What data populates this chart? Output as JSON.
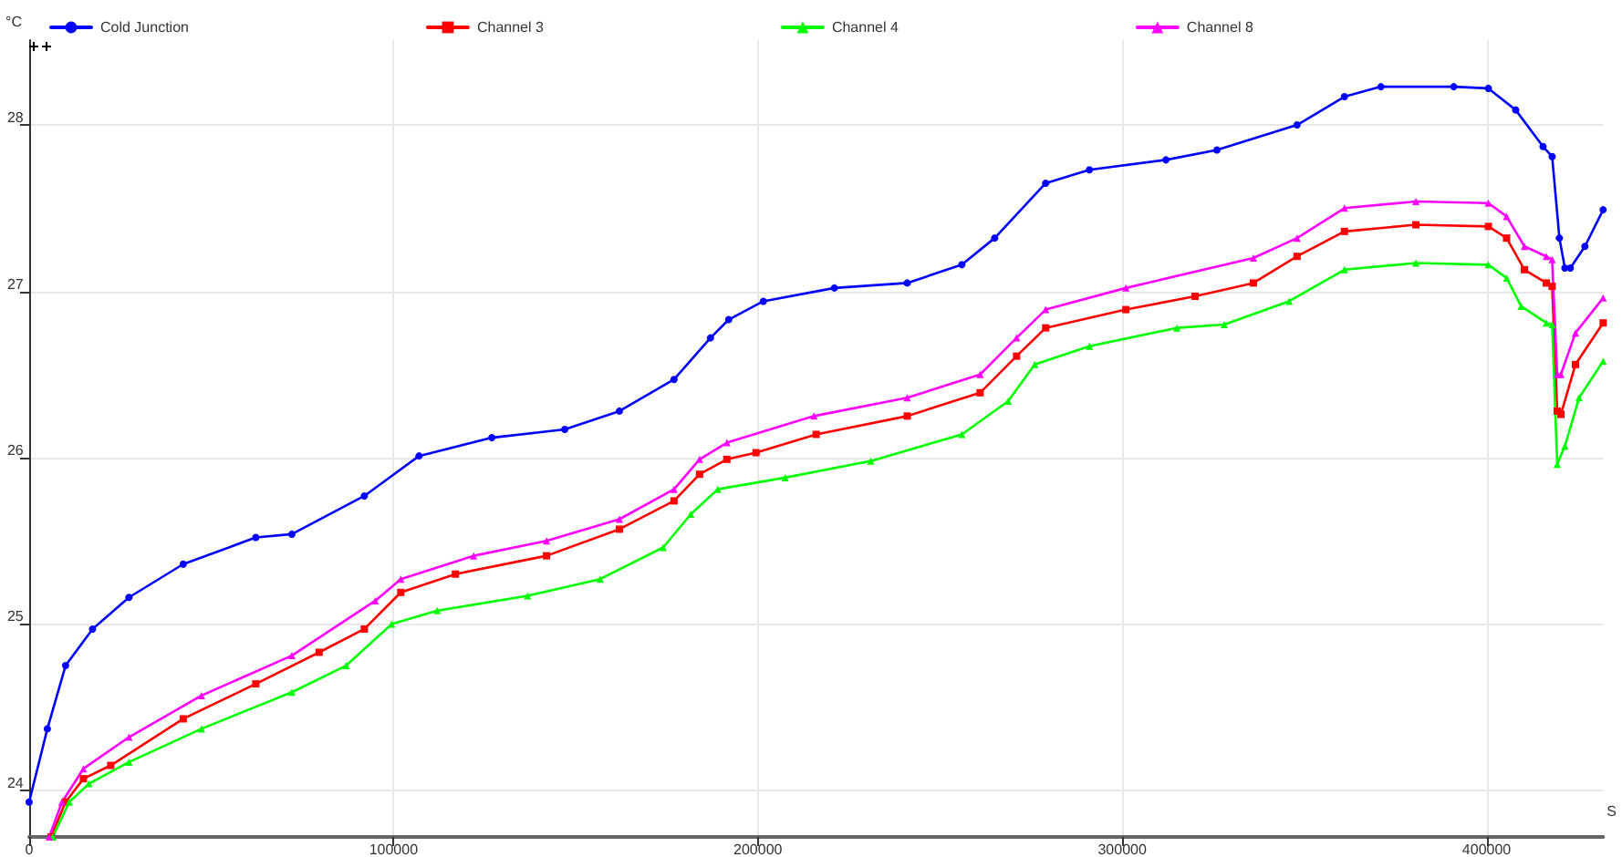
{
  "chart_data": {
    "type": "line",
    "xlabel": "S",
    "ylabel": "°C",
    "xlim": [
      0,
      432000
    ],
    "ylim": [
      23.72,
      28.51
    ],
    "xticks": [
      0,
      100000,
      200000,
      300000,
      400000
    ],
    "yticks": [
      24,
      25,
      26,
      27,
      28
    ],
    "grid": true,
    "legend": "top",
    "line_style": "solid",
    "series": [
      {
        "name": "Cold Junction",
        "color": "#0000ff",
        "marker": "circle",
        "x": [
          0,
          5000,
          10000,
          17400,
          27400,
          42300,
          62200,
          72100,
          92000,
          107000,
          127000,
          147000,
          162000,
          177000,
          187000,
          192000,
          201500,
          221000,
          241000,
          256000,
          265000,
          279000,
          291000,
          312000,
          326000,
          348000,
          361000,
          371000,
          391000,
          400500,
          408000,
          415500,
          418000,
          420000,
          421500,
          423000,
          427000,
          432000
        ],
        "values": [
          23.93,
          24.37,
          24.75,
          24.97,
          25.16,
          25.36,
          25.52,
          25.54,
          25.77,
          26.01,
          26.12,
          26.17,
          26.28,
          26.47,
          26.72,
          26.83,
          26.94,
          27.02,
          27.05,
          27.16,
          27.32,
          27.65,
          27.73,
          27.79,
          27.85,
          28.0,
          28.17,
          28.23,
          28.23,
          28.22,
          28.09,
          27.87,
          27.81,
          27.32,
          27.14,
          27.14,
          27.27,
          27.49
        ]
      },
      {
        "name": "Channel 3",
        "color": "#ff0000",
        "marker": "square",
        "x": [
          6000,
          10000,
          14900,
          22400,
          42300,
          62200,
          79600,
          92000,
          102000,
          117000,
          142000,
          162000,
          177000,
          184000,
          191500,
          199500,
          216000,
          241000,
          261000,
          271000,
          279000,
          301000,
          320000,
          336000,
          348000,
          361000,
          380600,
          400500,
          405500,
          410400,
          416400,
          418000,
          419400,
          420400,
          424400,
          432000
        ],
        "values": [
          23.72,
          23.93,
          24.07,
          24.15,
          24.43,
          24.64,
          24.83,
          24.97,
          25.19,
          25.3,
          25.41,
          25.57,
          25.74,
          25.9,
          25.99,
          26.03,
          26.14,
          26.25,
          26.39,
          26.61,
          26.78,
          26.89,
          26.97,
          27.05,
          27.21,
          27.36,
          27.4,
          27.39,
          27.32,
          27.13,
          27.05,
          27.03,
          26.28,
          26.26,
          26.56,
          26.81
        ]
      },
      {
        "name": "Channel 4",
        "color": "#00ff00",
        "marker": "triangle",
        "x": [
          6500,
          11000,
          16400,
          27400,
          47300,
          72100,
          87000,
          99500,
          112000,
          136800,
          156700,
          174000,
          181600,
          189000,
          207500,
          231000,
          256000,
          268700,
          276000,
          291000,
          315000,
          328000,
          345800,
          361000,
          380600,
          400500,
          405500,
          409500,
          416400,
          418000,
          419400,
          421500,
          425400,
          432000
        ],
        "values": [
          23.72,
          23.93,
          24.04,
          24.17,
          24.37,
          24.59,
          24.75,
          25.0,
          25.08,
          25.17,
          25.27,
          25.46,
          25.66,
          25.81,
          25.88,
          25.98,
          26.14,
          26.34,
          26.56,
          26.67,
          26.78,
          26.8,
          26.94,
          27.13,
          27.17,
          27.16,
          27.08,
          26.91,
          26.81,
          26.8,
          25.96,
          26.07,
          26.36,
          26.58
        ]
      },
      {
        "name": "Channel 8",
        "color": "#ff00ff",
        "marker": "triangle",
        "x": [
          5500,
          9000,
          14900,
          27400,
          47300,
          72100,
          95000,
          102000,
          122000,
          142000,
          162000,
          177000,
          184000,
          191500,
          215400,
          241000,
          261000,
          271000,
          279000,
          301000,
          336000,
          348000,
          361000,
          380600,
          400500,
          405500,
          410400,
          416400,
          418000,
          419400,
          420400,
          424400,
          432000
        ],
        "values": [
          23.72,
          23.93,
          24.13,
          24.32,
          24.57,
          24.81,
          25.14,
          25.27,
          25.41,
          25.5,
          25.63,
          25.81,
          25.99,
          26.09,
          26.25,
          26.36,
          26.5,
          26.72,
          26.89,
          27.02,
          27.2,
          27.32,
          27.5,
          27.54,
          27.53,
          27.45,
          27.27,
          27.21,
          27.19,
          26.5,
          26.5,
          26.75,
          26.96
        ]
      }
    ]
  }
}
